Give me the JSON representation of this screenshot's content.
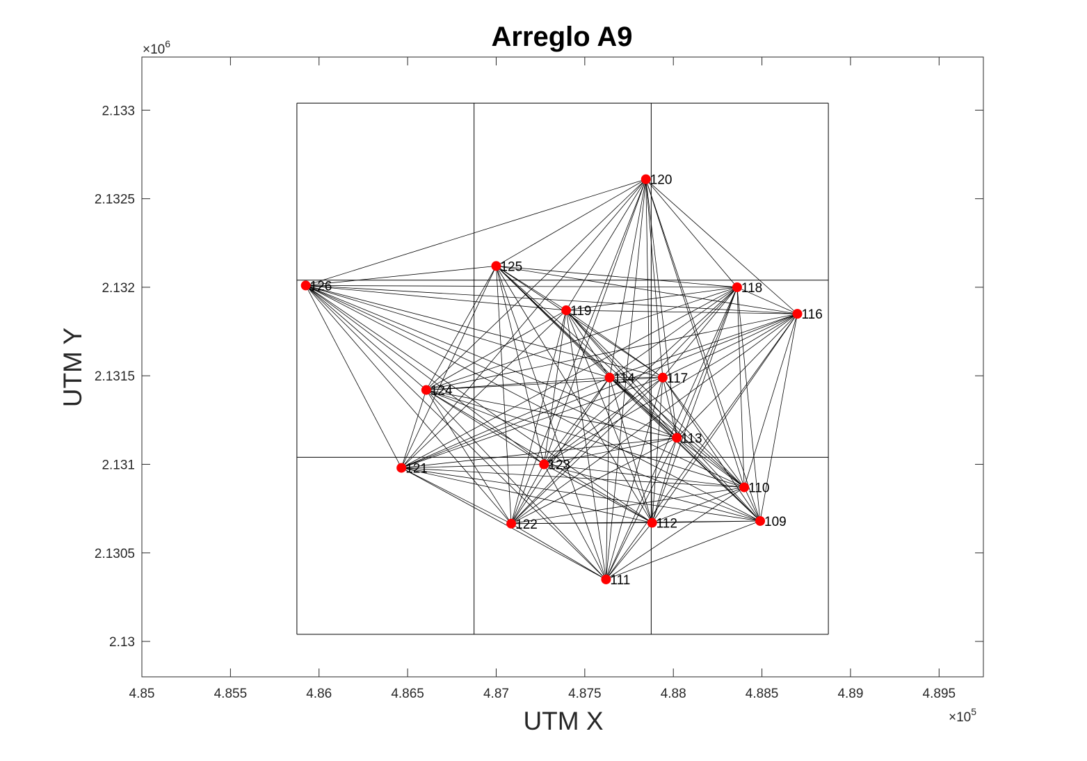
{
  "chart_data": {
    "type": "scatter",
    "title": "Arreglo A9",
    "xlabel": "UTM X",
    "ylabel": "UTM Y",
    "x_exponent_base": "×10",
    "x_exponent": "5",
    "y_exponent_base": "×10",
    "y_exponent": "6",
    "xlim": [
      485000,
      489750
    ],
    "ylim": [
      2129800,
      2133300
    ],
    "x_ticks": [
      {
        "value": 485000,
        "label": "4.85"
      },
      {
        "value": 485500,
        "label": "4.855"
      },
      {
        "value": 486000,
        "label": "4.86"
      },
      {
        "value": 486500,
        "label": "4.865"
      },
      {
        "value": 487000,
        "label": "4.87"
      },
      {
        "value": 487500,
        "label": "4.875"
      },
      {
        "value": 488000,
        "label": "4.88"
      },
      {
        "value": 488500,
        "label": "4.885"
      },
      {
        "value": 489000,
        "label": "4.89"
      },
      {
        "value": 489500,
        "label": "4.895"
      }
    ],
    "y_ticks": [
      {
        "value": 2130000,
        "label": "2.13"
      },
      {
        "value": 2130500,
        "label": "2.1305"
      },
      {
        "value": 2131000,
        "label": "2.131"
      },
      {
        "value": 2131500,
        "label": "2.1315"
      },
      {
        "value": 2132000,
        "label": "2.132"
      },
      {
        "value": 2132500,
        "label": "2.1325"
      },
      {
        "value": 2133000,
        "label": "2.133"
      }
    ],
    "grid": false,
    "marker_color": "#ff0000",
    "line_color": "#000000",
    "grid_cells": {
      "x_edges": [
        485875,
        486875,
        487875,
        488875
      ],
      "y_edges": [
        2130040,
        2131040,
        2132040,
        2133040
      ]
    },
    "stations": [
      {
        "label": "109",
        "x": 488490,
        "y": 2130680
      },
      {
        "label": "110",
        "x": 488400,
        "y": 2130870
      },
      {
        "label": "111",
        "x": 487620,
        "y": 2130350
      },
      {
        "label": "112",
        "x": 487880,
        "y": 2130670
      },
      {
        "label": "113",
        "x": 488020,
        "y": 2131150
      },
      {
        "label": "114",
        "x": 487640,
        "y": 2131490
      },
      {
        "label": "116",
        "x": 488700,
        "y": 2131850
      },
      {
        "label": "117",
        "x": 487940,
        "y": 2131490
      },
      {
        "label": "118",
        "x": 488360,
        "y": 2132000
      },
      {
        "label": "119",
        "x": 487395,
        "y": 2131870
      },
      {
        "label": "120",
        "x": 487845,
        "y": 2132610
      },
      {
        "label": "121",
        "x": 486465,
        "y": 2130980
      },
      {
        "label": "122",
        "x": 487085,
        "y": 2130665
      },
      {
        "label": "123",
        "x": 487270,
        "y": 2131000
      },
      {
        "label": "124",
        "x": 486605,
        "y": 2131420
      },
      {
        "label": "125",
        "x": 487000,
        "y": 2132120
      },
      {
        "label": "126",
        "x": 485925,
        "y": 2132010
      }
    ]
  }
}
